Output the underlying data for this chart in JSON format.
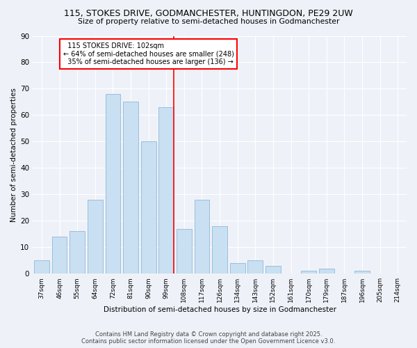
{
  "title": "115, STOKES DRIVE, GODMANCHESTER, HUNTINGDON, PE29 2UW",
  "subtitle": "Size of property relative to semi-detached houses in Godmanchester",
  "xlabel": "Distribution of semi-detached houses by size in Godmanchester",
  "ylabel": "Number of semi-detached properties",
  "categories": [
    "37sqm",
    "46sqm",
    "55sqm",
    "64sqm",
    "72sqm",
    "81sqm",
    "90sqm",
    "99sqm",
    "108sqm",
    "117sqm",
    "126sqm",
    "134sqm",
    "143sqm",
    "152sqm",
    "161sqm",
    "170sqm",
    "179sqm",
    "187sqm",
    "196sqm",
    "205sqm",
    "214sqm"
  ],
  "values": [
    5,
    14,
    16,
    28,
    68,
    65,
    50,
    63,
    17,
    28,
    18,
    4,
    5,
    3,
    0,
    1,
    2,
    0,
    1,
    0,
    0
  ],
  "bar_color": "#c9dff2",
  "bar_edge_color": "#9bbedd",
  "property_label": "115 STOKES DRIVE: 102sqm",
  "pct_smaller": 64,
  "n_smaller": 248,
  "pct_larger": 35,
  "n_larger": 136,
  "vline_bin_index": 7,
  "ylim": [
    0,
    90
  ],
  "yticks": [
    0,
    10,
    20,
    30,
    40,
    50,
    60,
    70,
    80,
    90
  ],
  "background_color": "#eef2f8",
  "footer_line1": "Contains HM Land Registry data © Crown copyright and database right 2025.",
  "footer_line2": "Contains public sector information licensed under the Open Government Licence v3.0."
}
